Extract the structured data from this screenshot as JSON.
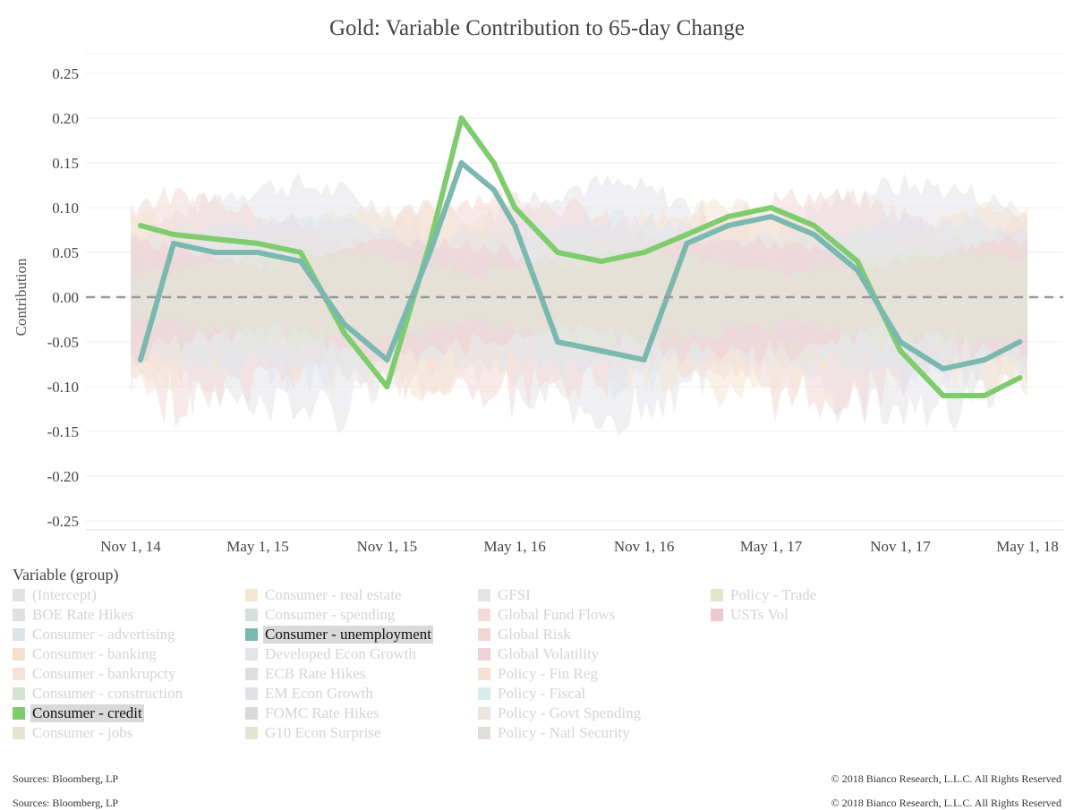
{
  "title": "Gold: Variable Contribution to 65-day Change",
  "footer": {
    "source": "Sources: Bloomberg, LP",
    "copyright": "© 2018 Bianco Research, L.L.C. All Rights Reserved"
  },
  "chart_data": {
    "type": "area",
    "title": "Gold: Variable Contribution to 65-day Change",
    "xlabel": "",
    "ylabel": "Contribution",
    "x_ticks": [
      "Nov 1, 14",
      "May 1, 15",
      "Nov 1, 15",
      "May 1, 16",
      "Nov 1, 16",
      "May 1, 17",
      "Nov 1, 17",
      "May 1, 18"
    ],
    "y_ticks": [
      "0.25",
      "0.20",
      "0.15",
      "0.10",
      "0.05",
      "0.00",
      "-0.05",
      "-0.10",
      "-0.15",
      "-0.20",
      "-0.25"
    ],
    "ylim": [
      -0.25,
      0.25
    ],
    "xlim": [
      "2014-11-01",
      "2018-05-01"
    ],
    "grid": true,
    "zero_line": "dashed",
    "series": [
      {
        "name": "Consumer - credit",
        "color": "#7fcc6e",
        "x": [
          "2014-11-15",
          "2015-01-01",
          "2015-03-01",
          "2015-05-01",
          "2015-07-01",
          "2015-09-01",
          "2015-11-01",
          "2016-01-01",
          "2016-02-15",
          "2016-04-01",
          "2016-05-01",
          "2016-07-01",
          "2016-09-01",
          "2016-11-01",
          "2017-01-01",
          "2017-03-01",
          "2017-05-01",
          "2017-07-01",
          "2017-09-01",
          "2017-11-01",
          "2018-01-01",
          "2018-03-01",
          "2018-04-20"
        ],
        "values": [
          0.08,
          0.07,
          0.065,
          0.06,
          0.05,
          -0.04,
          -0.1,
          0.06,
          0.2,
          0.15,
          0.1,
          0.05,
          0.04,
          0.05,
          0.07,
          0.09,
          0.1,
          0.08,
          0.04,
          -0.06,
          -0.11,
          -0.11,
          -0.09
        ]
      },
      {
        "name": "Consumer - unemployment",
        "color": "#7ab8b0",
        "x": [
          "2014-11-15",
          "2015-01-01",
          "2015-03-01",
          "2015-05-01",
          "2015-07-01",
          "2015-09-01",
          "2015-11-01",
          "2016-01-01",
          "2016-02-15",
          "2016-04-01",
          "2016-05-01",
          "2016-07-01",
          "2016-09-01",
          "2016-11-01",
          "2017-01-01",
          "2017-03-01",
          "2017-05-01",
          "2017-07-01",
          "2017-09-01",
          "2017-11-01",
          "2018-01-01",
          "2018-03-01",
          "2018-04-20"
        ],
        "values": [
          -0.07,
          0.06,
          0.05,
          0.05,
          0.04,
          -0.03,
          -0.07,
          0.05,
          0.15,
          0.12,
          0.08,
          -0.05,
          -0.06,
          -0.07,
          0.06,
          0.08,
          0.09,
          0.07,
          0.03,
          -0.05,
          -0.08,
          -0.07,
          -0.05
        ]
      }
    ],
    "legend": {
      "title": "Variable (group)",
      "columns": [
        [
          {
            "label": "(Intercept)",
            "color": "#e2e2e2",
            "active": false
          },
          {
            "label": "BOE Rate Hikes",
            "color": "#e0e0e0",
            "active": false
          },
          {
            "label": "Consumer - advertising",
            "color": "#dde3ea",
            "active": false
          },
          {
            "label": "Consumer - banking",
            "color": "#f2dfcc",
            "active": false
          },
          {
            "label": "Consumer - bankrupcty",
            "color": "#f5e3d6",
            "active": false
          },
          {
            "label": "Consumer - construction",
            "color": "#d5e3d3",
            "active": false
          },
          {
            "label": "Consumer - credit",
            "color": "#7fcc6e",
            "active": true
          },
          {
            "label": "Consumer - jobs",
            "color": "#e8e2d0",
            "active": false
          }
        ],
        [
          {
            "label": "Consumer - real estate",
            "color": "#f3e6d5",
            "active": false
          },
          {
            "label": "Consumer - spending",
            "color": "#d4e0dc",
            "active": false
          },
          {
            "label": "Consumer - unemployment",
            "color": "#7ab8b0",
            "active": true
          },
          {
            "label": "Developed Econ Growth",
            "color": "#e6e3ec",
            "active": false
          },
          {
            "label": "ECB Rate Hikes",
            "color": "#dedede",
            "active": false
          },
          {
            "label": "EM Econ Growth",
            "color": "#e1e1e6",
            "active": false
          },
          {
            "label": "FOMC Rate Hikes",
            "color": "#d9d9d9",
            "active": false
          },
          {
            "label": "G10 Econ Surprise",
            "color": "#e1e6d2",
            "active": false
          }
        ],
        [
          {
            "label": "GFSI",
            "color": "#e2e2ea",
            "active": false
          },
          {
            "label": "Global Fund Flows",
            "color": "#f1dcd7",
            "active": false
          },
          {
            "label": "Global Risk",
            "color": "#f2d6d3",
            "active": false
          },
          {
            "label": "Global Volatility",
            "color": "#efd2d6",
            "active": false
          },
          {
            "label": "Policy - Fin Reg",
            "color": "#f5e1d6",
            "active": false
          },
          {
            "label": "Policy - Fiscal",
            "color": "#d8ecec",
            "active": false
          },
          {
            "label": "Policy - Govt Spending",
            "color": "#efe3df",
            "active": false
          },
          {
            "label": "Policy - Natl Security",
            "color": "#e4dcda",
            "active": false
          }
        ],
        [
          {
            "label": "Policy - Trade",
            "color": "#dfe6cc",
            "active": false
          },
          {
            "label": "USTs Vol",
            "color": "#f0c9cc",
            "active": false
          }
        ]
      ]
    }
  }
}
